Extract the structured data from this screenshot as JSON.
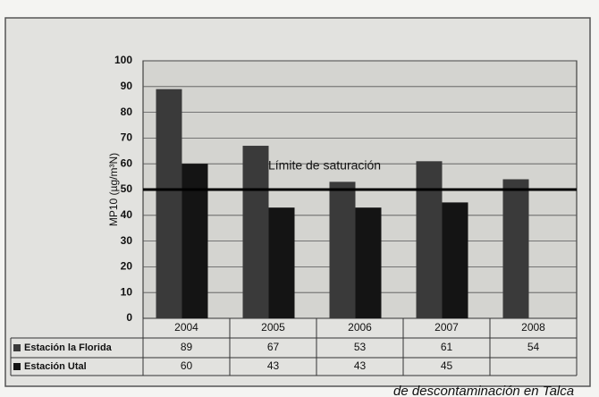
{
  "chart_data": {
    "type": "bar",
    "categories": [
      "2004",
      "2005",
      "2006",
      "2007",
      "2008"
    ],
    "series": [
      {
        "name": "Estación la Florida",
        "color": "#3a3a3a",
        "values": [
          89,
          67,
          53,
          61,
          54
        ]
      },
      {
        "name": "Estación Utal",
        "color": "#141414",
        "values": [
          60,
          43,
          43,
          45,
          null
        ]
      }
    ],
    "ylabel": "MP10 (µg/m³N)",
    "ylim": [
      0,
      100
    ],
    "yticks": [
      0,
      10,
      20,
      30,
      40,
      50,
      60,
      70,
      80,
      90,
      100
    ],
    "grid": true,
    "threshold": 50,
    "threshold_label": "Límite de saturación",
    "caption": "de descontaminación en Talca"
  }
}
